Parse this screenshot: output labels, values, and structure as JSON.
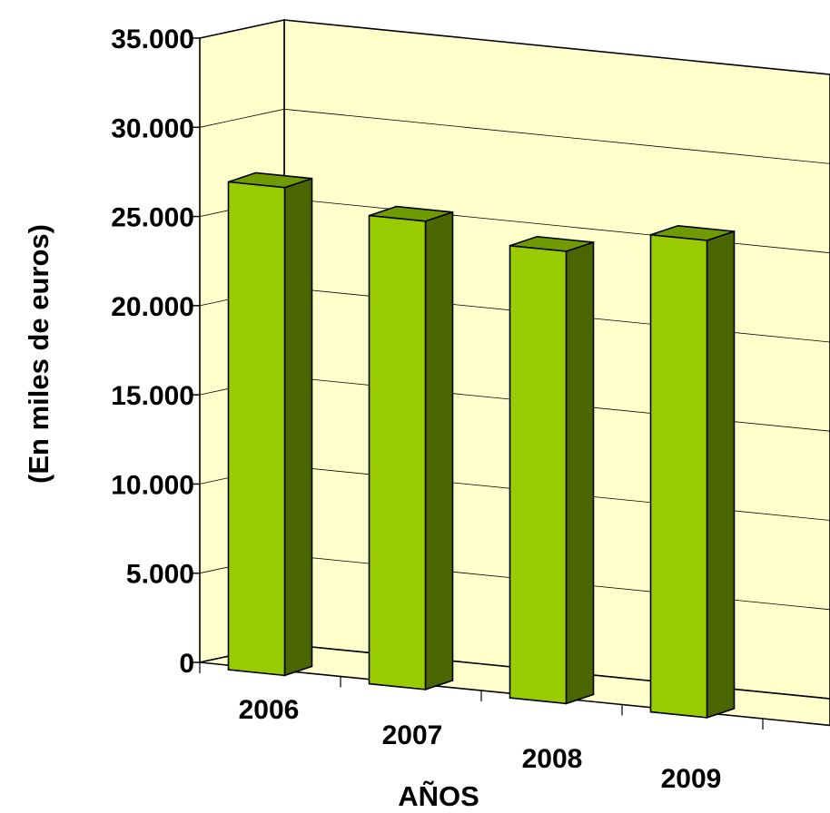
{
  "chart_data": {
    "type": "bar",
    "categories": [
      "2006",
      "2007",
      "2008",
      "2009"
    ],
    "values": [
      27300,
      26200,
      25300,
      26700
    ],
    "ylabel": "(En miles de euros)",
    "xlabel": "AÑOS",
    "ylim": [
      0,
      35000
    ],
    "yticks": [
      "0",
      "5.000",
      "10.000",
      "15.000",
      "20.000",
      "25.000",
      "30.000",
      "35.000"
    ],
    "grid": true,
    "style": "3d",
    "colors": {
      "bar_front": "#99cc00",
      "bar_top": "#6f9a00",
      "bar_side": "#4a6600",
      "wall": "#ffffcc",
      "floor": "#ffffcc",
      "gridline": "#000000"
    }
  }
}
